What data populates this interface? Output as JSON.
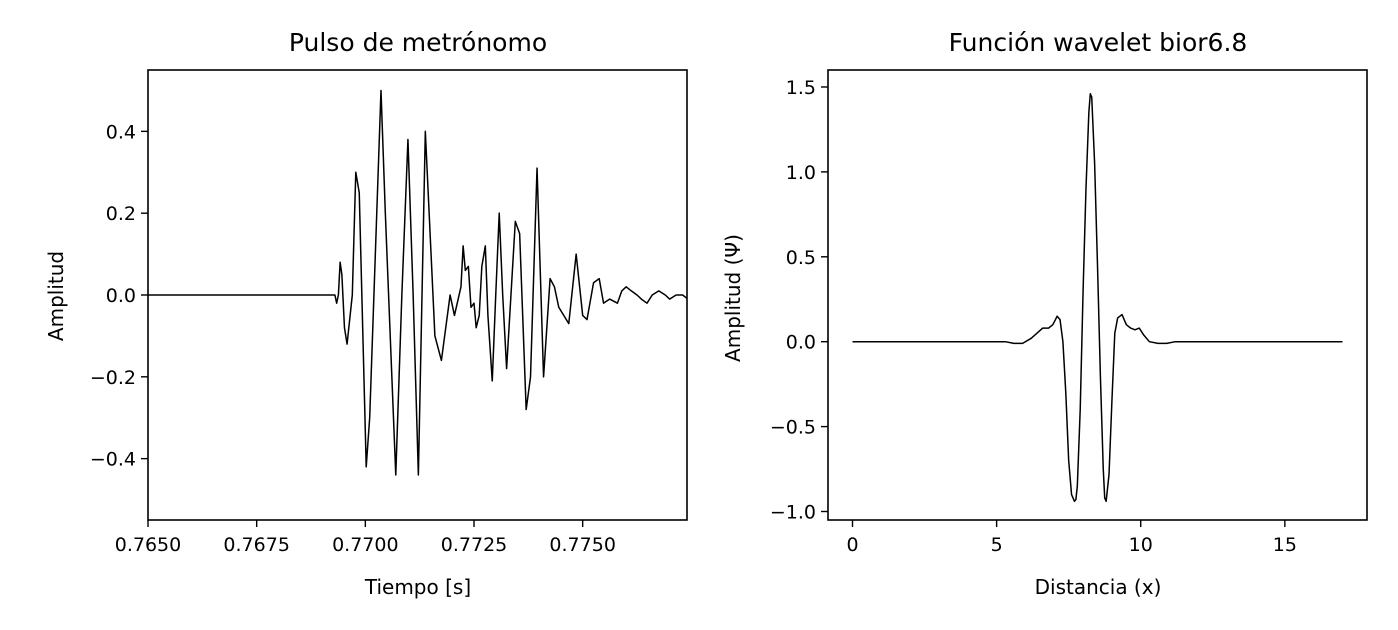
{
  "chart_data": [
    {
      "type": "line",
      "title": "Pulso de metrónomo",
      "xlabel": "Tiempo [s]",
      "ylabel": "Amplitud",
      "xlim": [
        0.765,
        0.7774
      ],
      "ylim": [
        -0.55,
        0.55
      ],
      "xticks": [
        0.765,
        0.7675,
        0.77,
        0.7725,
        0.775
      ],
      "xtick_labels": [
        "0.7650",
        "0.7675",
        "0.7700",
        "0.7725",
        "0.7750"
      ],
      "yticks": [
        -0.4,
        -0.2,
        0.0,
        0.2,
        0.4
      ],
      "ytick_labels": [
        "−0.4",
        "−0.2",
        "0.0",
        "0.2",
        "0.4"
      ],
      "grid": false,
      "series": [
        {
          "color": "#000000",
          "x": [
            0.765,
            0.7693,
            0.76934,
            0.76938,
            0.76942,
            0.76946,
            0.76952,
            0.76958,
            0.7697,
            0.76978,
            0.76986,
            0.77002,
            0.7701,
            0.77036,
            0.77046,
            0.7707,
            0.77084,
            0.77098,
            0.7711,
            0.77122,
            0.77138,
            0.7716,
            0.77175,
            0.77195,
            0.77205,
            0.7722,
            0.77225,
            0.7723,
            0.77237,
            0.77243,
            0.7725,
            0.77255,
            0.77262,
            0.77268,
            0.77276,
            0.77282,
            0.77292,
            0.773,
            0.77308,
            0.77316,
            0.77325,
            0.77345,
            0.77355,
            0.7737,
            0.7738,
            0.77395,
            0.7741,
            0.77425,
            0.77435,
            0.77445,
            0.77468,
            0.77485,
            0.775,
            0.7751,
            0.77525,
            0.77538,
            0.77548,
            0.77562,
            0.7758,
            0.7759,
            0.776,
            0.77612,
            0.77625,
            0.77635,
            0.77648,
            0.7766,
            0.77675,
            0.7769,
            0.777,
            0.77715,
            0.7773,
            0.77742
          ],
          "y": [
            0.0,
            0.0,
            -0.02,
            0.0,
            0.08,
            0.05,
            -0.08,
            -0.12,
            0.0,
            0.3,
            0.25,
            -0.42,
            -0.3,
            0.5,
            0.2,
            -0.44,
            0.0,
            0.38,
            0.0,
            -0.44,
            0.4,
            -0.1,
            -0.16,
            0.0,
            -0.05,
            0.02,
            0.12,
            0.06,
            0.07,
            -0.03,
            -0.02,
            -0.08,
            -0.05,
            0.07,
            0.12,
            -0.05,
            -0.21,
            0.0,
            0.2,
            0.0,
            -0.18,
            0.18,
            0.15,
            -0.28,
            -0.2,
            0.31,
            -0.2,
            0.04,
            0.02,
            -0.03,
            -0.07,
            0.1,
            -0.05,
            -0.06,
            0.03,
            0.04,
            -0.02,
            -0.01,
            -0.02,
            0.01,
            0.02,
            0.01,
            0.0,
            -0.01,
            -0.02,
            0.0,
            0.01,
            0.0,
            -0.01,
            0.0,
            0.0,
            -0.01
          ]
        }
      ]
    },
    {
      "type": "line",
      "title": "Función wavelet bior6.8",
      "xlabel": "Distancia (x)",
      "ylabel": "Amplitud (Ψ)",
      "xlim": [
        -0.85,
        17.85
      ],
      "ylim": [
        -1.05,
        1.6
      ],
      "xticks": [
        0,
        5,
        10,
        15
      ],
      "xtick_labels": [
        "0",
        "5",
        "10",
        "15"
      ],
      "yticks": [
        -1.0,
        -0.5,
        0.0,
        0.5,
        1.0,
        1.5
      ],
      "ytick_labels": [
        "−1.0",
        "−0.5",
        "0.0",
        "0.5",
        "1.0",
        "1.5"
      ],
      "grid": false,
      "series": [
        {
          "color": "#000000",
          "x": [
            0,
            4.5,
            5.0,
            5.3,
            5.6,
            5.9,
            6.2,
            6.4,
            6.6,
            6.8,
            6.95,
            7.1,
            7.2,
            7.3,
            7.4,
            7.5,
            7.6,
            7.7,
            7.75,
            7.8,
            7.9,
            8.0,
            8.1,
            8.2,
            8.25,
            8.3,
            8.4,
            8.5,
            8.6,
            8.7,
            8.75,
            8.8,
            8.9,
            9.0,
            9.1,
            9.2,
            9.35,
            9.5,
            9.65,
            9.8,
            9.95,
            10.1,
            10.3,
            10.6,
            10.9,
            11.2,
            11.5,
            11.8,
            12.5,
            17.0
          ],
          "y": [
            0.0,
            0.0,
            0.0,
            0.0,
            -0.01,
            -0.01,
            0.02,
            0.05,
            0.08,
            0.08,
            0.1,
            0.15,
            0.13,
            0.0,
            -0.3,
            -0.7,
            -0.9,
            -0.94,
            -0.93,
            -0.85,
            -0.4,
            0.3,
            0.9,
            1.35,
            1.46,
            1.44,
            1.05,
            0.45,
            -0.2,
            -0.75,
            -0.92,
            -0.94,
            -0.78,
            -0.35,
            0.05,
            0.14,
            0.16,
            0.1,
            0.08,
            0.07,
            0.08,
            0.04,
            0.0,
            -0.01,
            -0.01,
            0.0,
            0.0,
            0.0,
            0.0,
            0.0
          ]
        }
      ]
    }
  ]
}
